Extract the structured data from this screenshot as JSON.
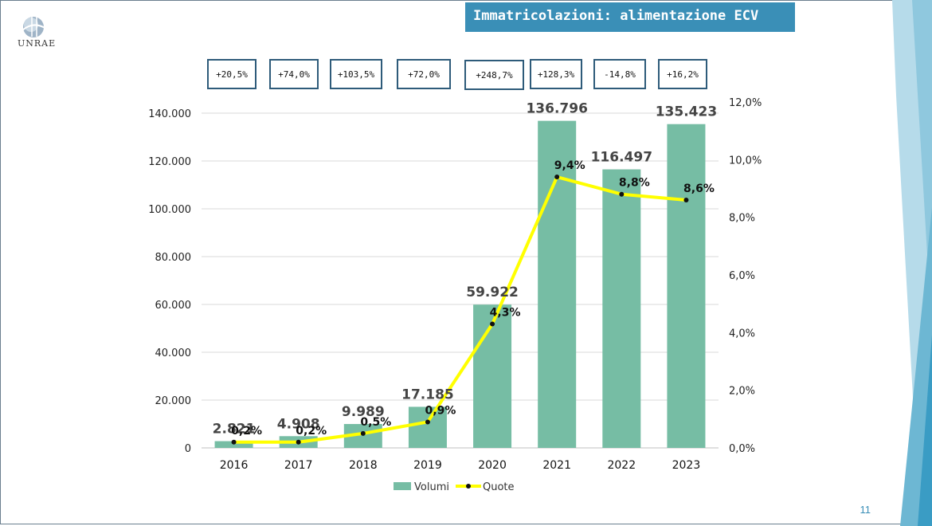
{
  "header": {
    "title": "Immatricolazioni: alimentazione ECV",
    "logo_text": "UNRAE"
  },
  "page_number": "11",
  "growth_labels": [
    "+20,5%",
    "+74,0%",
    "+103,5%",
    "+72,0%",
    "+248,7%",
    "+128,3%",
    "-14,8%",
    "+16,2%"
  ],
  "colors": {
    "bar": "#76bda4",
    "line": "#ffff00",
    "title_bg": "#3a8fb7",
    "accent": "#2e5b7a"
  },
  "chart_data": {
    "type": "bar",
    "categories": [
      "2016",
      "2017",
      "2018",
      "2019",
      "2020",
      "2021",
      "2022",
      "2023"
    ],
    "series": [
      {
        "name": "Volumi",
        "type": "bar",
        "axis": "left",
        "values": [
          2821,
          4908,
          9989,
          17185,
          59922,
          136796,
          116497,
          135423
        ],
        "labels": [
          "2.821",
          "4.908",
          "9.989",
          "17.185",
          "59.922",
          "136.796",
          "116.497",
          "135.423"
        ]
      },
      {
        "name": "Quote",
        "type": "line",
        "axis": "right",
        "values": [
          0.2,
          0.2,
          0.5,
          0.9,
          4.3,
          9.4,
          8.8,
          8.6
        ],
        "labels": [
          "0,2%",
          "0,2%",
          "0,5%",
          "0,9%",
          "4,3%",
          "9,4%",
          "8,8%",
          "8,6%"
        ]
      }
    ],
    "y_left": {
      "ylim": [
        0,
        140000
      ],
      "ticks": [
        "0",
        "20.000",
        "40.000",
        "60.000",
        "80.000",
        "100.000",
        "120.000",
        "140.000"
      ]
    },
    "y_right": {
      "ylim": [
        0,
        12
      ],
      "ticks": [
        "0,0%",
        "2,0%",
        "4,0%",
        "6,0%",
        "8,0%",
        "10,0%",
        "12,0%"
      ]
    },
    "grid": true,
    "legend": "bottom"
  }
}
